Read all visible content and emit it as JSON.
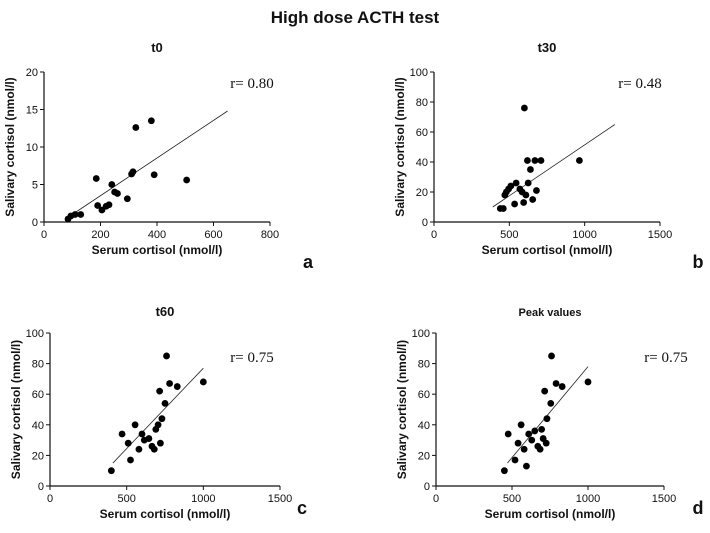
{
  "figure_title": "High dose ACTH test",
  "chart_data": [
    {
      "type": "scatter",
      "panel_label": "a",
      "title": "t0",
      "xlabel": "Serum cortisol (nmol/l)",
      "ylabel": "Salivary cortisol (nmol/l)",
      "xlim": [
        0,
        800
      ],
      "ylim": [
        0,
        20
      ],
      "xticks": [
        0,
        200,
        400,
        600,
        800
      ],
      "yticks": [
        0,
        5,
        10,
        15,
        20
      ],
      "annotation": "r= 0.80",
      "grid": false,
      "points": [
        [
          85,
          0.4
        ],
        [
          95,
          0.8
        ],
        [
          110,
          1.0
        ],
        [
          130,
          1.0
        ],
        [
          185,
          5.8
        ],
        [
          190,
          2.2
        ],
        [
          205,
          1.6
        ],
        [
          220,
          2.1
        ],
        [
          230,
          2.3
        ],
        [
          240,
          5.0
        ],
        [
          250,
          4.0
        ],
        [
          260,
          3.8
        ],
        [
          295,
          3.1
        ],
        [
          310,
          6.4
        ],
        [
          315,
          6.7
        ],
        [
          325,
          12.6
        ],
        [
          380,
          13.5
        ],
        [
          390,
          6.3
        ],
        [
          505,
          5.6
        ]
      ],
      "trendline": [
        [
          80,
          0.5
        ],
        [
          650,
          14.8
        ]
      ]
    },
    {
      "type": "scatter",
      "panel_label": "b",
      "title": "t30",
      "xlabel": "Serum cortisol (nmol/l)",
      "ylabel": "Salivary cortisol (nmol/l)",
      "xlim": [
        0,
        1500
      ],
      "ylim": [
        0,
        100
      ],
      "xticks": [
        0,
        500,
        1000,
        1500
      ],
      "yticks": [
        0,
        20,
        40,
        60,
        80,
        100
      ],
      "annotation": "r= 0.48",
      "grid": false,
      "points": [
        [
          440,
          9
        ],
        [
          460,
          9
        ],
        [
          470,
          18
        ],
        [
          480,
          20
        ],
        [
          495,
          22
        ],
        [
          510,
          24
        ],
        [
          535,
          12
        ],
        [
          545,
          26
        ],
        [
          570,
          22
        ],
        [
          585,
          20
        ],
        [
          595,
          13
        ],
        [
          600,
          76
        ],
        [
          610,
          18
        ],
        [
          620,
          41
        ],
        [
          625,
          26
        ],
        [
          640,
          35
        ],
        [
          655,
          15
        ],
        [
          670,
          41
        ],
        [
          680,
          21
        ],
        [
          710,
          41
        ],
        [
          965,
          41
        ]
      ],
      "trendline": [
        [
          390,
          10
        ],
        [
          1200,
          65
        ]
      ]
    },
    {
      "type": "scatter",
      "panel_label": "c",
      "title": "t60",
      "xlabel": "Serum cortisol (nmol/l)",
      "ylabel": "Salivary cortisol (nmol/l)",
      "xlim": [
        0,
        1500
      ],
      "ylim": [
        0,
        100
      ],
      "xticks": [
        0,
        500,
        1000,
        1500
      ],
      "yticks": [
        0,
        20,
        40,
        60,
        80,
        100
      ],
      "annotation": "r= 0.75",
      "grid": false,
      "points": [
        [
          400,
          10
        ],
        [
          470,
          34
        ],
        [
          510,
          28
        ],
        [
          525,
          17
        ],
        [
          555,
          40
        ],
        [
          580,
          24
        ],
        [
          600,
          34
        ],
        [
          615,
          30
        ],
        [
          645,
          31
        ],
        [
          665,
          26
        ],
        [
          680,
          24
        ],
        [
          690,
          37
        ],
        [
          705,
          40
        ],
        [
          715,
          62
        ],
        [
          720,
          28
        ],
        [
          730,
          44
        ],
        [
          750,
          54
        ],
        [
          760,
          85
        ],
        [
          780,
          67
        ],
        [
          830,
          65
        ],
        [
          1000,
          68
        ]
      ],
      "trendline": [
        [
          410,
          15
        ],
        [
          1000,
          77
        ]
      ]
    },
    {
      "type": "scatter",
      "panel_label": "d",
      "title": "Peak values",
      "xlabel": "Serum cortisol (nmol/l)",
      "ylabel": "Salivary cortisol (nmol/l)",
      "xlim": [
        0,
        1500
      ],
      "ylim": [
        0,
        100
      ],
      "xticks": [
        0,
        500,
        1000,
        1500
      ],
      "yticks": [
        0,
        20,
        40,
        60,
        80,
        100
      ],
      "annotation": "r= 0.75",
      "grid": false,
      "points": [
        [
          450,
          10
        ],
        [
          475,
          34
        ],
        [
          520,
          17
        ],
        [
          540,
          28
        ],
        [
          560,
          40
        ],
        [
          580,
          24
        ],
        [
          595,
          13
        ],
        [
          610,
          34
        ],
        [
          630,
          30
        ],
        [
          650,
          36
        ],
        [
          670,
          26
        ],
        [
          685,
          24
        ],
        [
          695,
          37
        ],
        [
          705,
          31
        ],
        [
          715,
          62
        ],
        [
          725,
          28
        ],
        [
          730,
          44
        ],
        [
          755,
          54
        ],
        [
          760,
          85
        ],
        [
          790,
          67
        ],
        [
          830,
          65
        ],
        [
          1000,
          68
        ]
      ],
      "trendline": [
        [
          470,
          15
        ],
        [
          1000,
          78
        ]
      ]
    }
  ]
}
